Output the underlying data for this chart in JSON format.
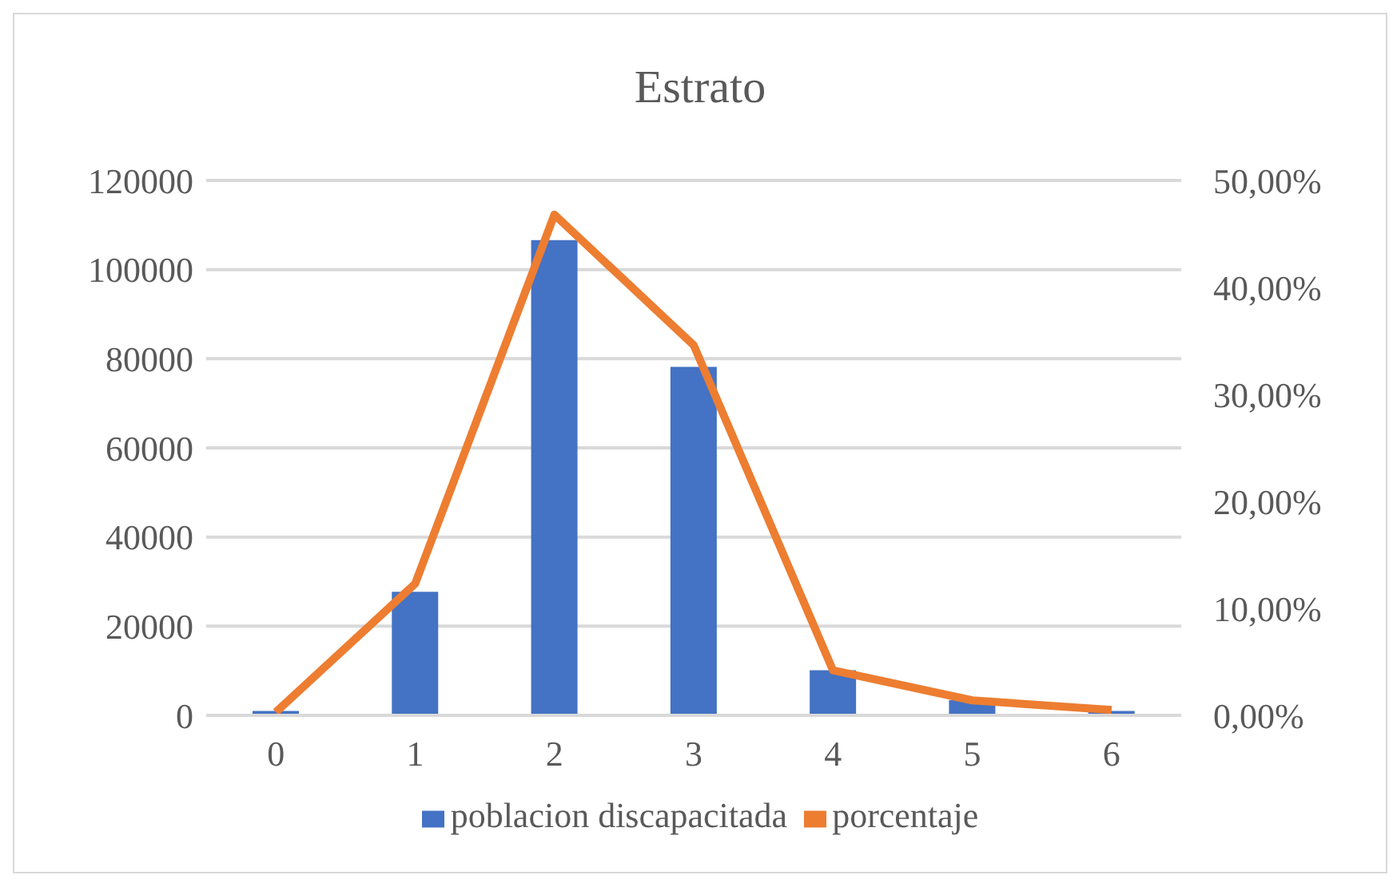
{
  "chart_data": {
    "type": "bar",
    "title": "Estrato",
    "categories": [
      "0",
      "1",
      "2",
      "3",
      "4",
      "5",
      "6"
    ],
    "series": [
      {
        "name": "poblacion discapacitada",
        "color": "#4472c4",
        "values": [
          1000,
          27700,
          106600,
          78200,
          10100,
          3400,
          1000
        ]
      },
      {
        "name": "porcentaje",
        "type": "line",
        "axis": "y2",
        "color": "#ed7d31",
        "values": [
          0.3,
          12.3,
          46.8,
          34.6,
          4.2,
          1.4,
          0.5
        ]
      }
    ],
    "ylim": [
      0,
      120000
    ],
    "yticks": [
      0,
      20000,
      40000,
      60000,
      80000,
      100000,
      120000
    ],
    "y2lim": [
      0,
      50
    ],
    "y2ticks": [
      {
        "value": 0,
        "label": "0,00%"
      },
      {
        "value": 10,
        "label": "10,00%"
      },
      {
        "value": 20,
        "label": "20,00%"
      },
      {
        "value": 30,
        "label": "30,00%"
      },
      {
        "value": 40,
        "label": "40,00%"
      },
      {
        "value": 50,
        "label": "50,00%"
      }
    ],
    "grid": "y",
    "legend": "bottom",
    "marker": "none"
  }
}
